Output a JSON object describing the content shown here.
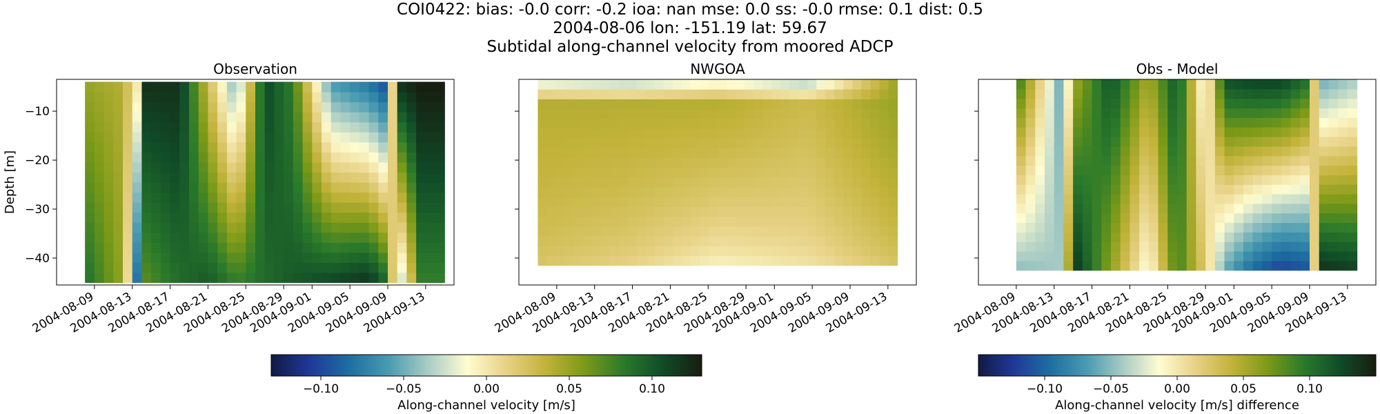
{
  "figure": {
    "title_line1": "COI0422: bias: -0.0  corr: -0.2  ioa: nan  mse: 0.0  ss: -0.0  rmse: 0.1  dist: 0.5",
    "title_line2": "2004-08-06 lon: -151.19 lat: 59.67",
    "title_line3": "Subtidal along-channel velocity from moored ADCP"
  },
  "colors": {
    "delta_cmap": [
      "#111a45",
      "#20399a",
      "#1d6fa1",
      "#4a9bb1",
      "#a8ccc4",
      "#fffcd1",
      "#e7d286",
      "#c3b33a",
      "#7c9a17",
      "#2a7a2b",
      "#104c28",
      "#171d10"
    ]
  },
  "chart_data": [
    {
      "type": "heatmap",
      "title": "Observation",
      "xlabel": "",
      "ylabel": "Depth [m]",
      "x_ticks": [
        "2004-08-09",
        "2004-08-13",
        "2004-08-17",
        "2004-08-21",
        "2004-08-25",
        "2004-08-29",
        "2004-09-01",
        "2004-09-05",
        "2004-09-09",
        "2004-09-13"
      ],
      "y_ticks": [
        -10,
        -20,
        -30,
        -40
      ],
      "ylim": [
        -45.5,
        -3.5
      ],
      "clim": [
        -0.13,
        0.13
      ],
      "depth_range": [
        -45,
        -4
      ],
      "time_range": [
        "2004-08-08",
        "2004-09-15"
      ],
      "n_time": 38,
      "n_depth": 20,
      "key_times": [
        0,
        4,
        5.5,
        6.5,
        10,
        13,
        16,
        19,
        22,
        26,
        30,
        32,
        33,
        35.5,
        38
      ],
      "surface_v": [
        0.05,
        0.04,
        0.0,
        0.12,
        0.12,
        0.03,
        -0.05,
        0.11,
        0.08,
        -0.06,
        -0.08,
        -0.1,
        0.12,
        0.13,
        0.13
      ],
      "bottom_v": [
        0.09,
        0.05,
        -0.08,
        0.07,
        0.09,
        0.1,
        0.08,
        0.09,
        0.1,
        0.11,
        0.12,
        0.09,
        -0.05,
        0.08,
        0.08
      ]
    },
    {
      "type": "heatmap",
      "title": "NWGOA",
      "xlabel": "",
      "ylabel": "",
      "x_ticks": [
        "2004-08-09",
        "2004-08-13",
        "2004-08-17",
        "2004-08-21",
        "2004-08-25",
        "2004-08-29",
        "2004-09-01",
        "2004-09-05",
        "2004-09-09",
        "2004-09-13"
      ],
      "ylim": [
        -45.5,
        -3.5
      ],
      "clim": [
        -0.13,
        0.13
      ],
      "depth_range": [
        -41.5,
        -3.5
      ],
      "time_range": [
        "2004-08-07",
        "2004-09-14"
      ],
      "n_time": 40,
      "n_depth": 19,
      "key_times": [
        0,
        10,
        20,
        30,
        40
      ],
      "surface_v": [
        -0.03,
        -0.04,
        -0.02,
        -0.04,
        0.05
      ],
      "upper_v": [
        0.04,
        0.04,
        0.04,
        0.03,
        0.05
      ],
      "bottom_v": [
        0.02,
        0.01,
        -0.01,
        0.0,
        0.02
      ]
    },
    {
      "type": "heatmap",
      "title": "Obs - Model",
      "xlabel": "",
      "ylabel": "",
      "x_ticks": [
        "2004-08-09",
        "2004-08-13",
        "2004-08-17",
        "2004-08-21",
        "2004-08-25",
        "2004-08-29",
        "2004-09-01",
        "2004-09-05",
        "2004-09-09",
        "2004-09-13"
      ],
      "ylim": [
        -45.5,
        -3.5
      ],
      "clim": [
        -0.15,
        0.15
      ],
      "depth_range": [
        -42.5,
        -3.5
      ],
      "time_range": [
        "2004-08-09",
        "2004-09-14"
      ],
      "n_time": 36,
      "n_depth": 20,
      "key_times": [
        0,
        5,
        6,
        10,
        14,
        17,
        20,
        22,
        25,
        28,
        31,
        32,
        36
      ],
      "surface_v": [
        0.1,
        -0.07,
        0.05,
        0.12,
        0.05,
        0.12,
        -0.03,
        0.12,
        0.13,
        0.13,
        0.1,
        -0.06,
        -0.04
      ],
      "bottom_v": [
        -0.05,
        -0.04,
        0.14,
        0.06,
        -0.02,
        0.09,
        0.02,
        -0.06,
        -0.1,
        -0.12,
        -0.11,
        0.14,
        0.13
      ]
    }
  ],
  "colorbars": [
    {
      "label": "Along-channel velocity [m/s]",
      "clim": [
        -0.13,
        0.13
      ],
      "ticks": [
        -0.1,
        -0.05,
        0.0,
        0.05,
        0.1
      ],
      "tick_labels": [
        "−0.10",
        "−0.05",
        "0.00",
        "0.05",
        "0.10"
      ]
    },
    {
      "label": "Along-channel velocity [m/s] difference",
      "clim": [
        -0.15,
        0.15
      ],
      "ticks": [
        -0.1,
        -0.05,
        0.0,
        0.05,
        0.1
      ],
      "tick_labels": [
        "−0.10",
        "−0.05",
        "0.00",
        "0.05",
        "0.10"
      ]
    }
  ]
}
